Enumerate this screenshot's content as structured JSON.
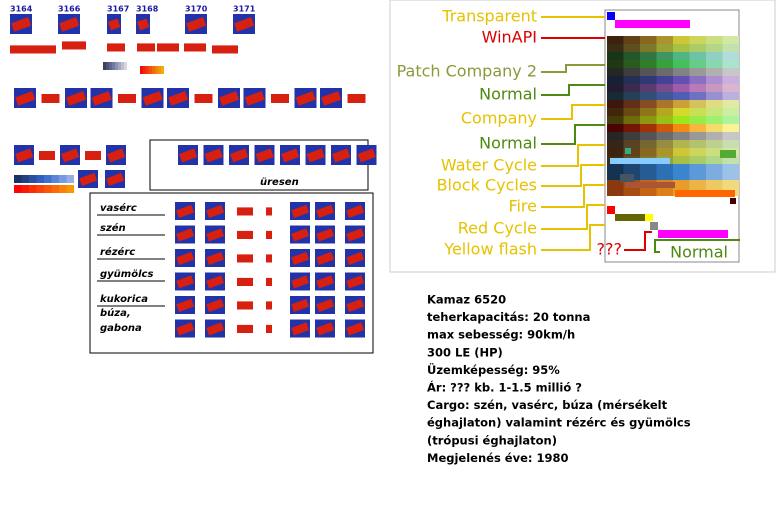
{
  "sprite_ids": [
    "3164",
    "3166",
    "3167",
    "3168",
    "3170",
    "3171"
  ],
  "empty_label": "üresen",
  "cargo_labels": [
    "vasérc",
    "szén",
    "rézérc",
    "gyümölcs",
    "kukorica",
    "búza,",
    "gabona"
  ],
  "palette_labels": [
    "Transparent",
    "WinAPI",
    "Patch Company 2",
    "Normal",
    "Company",
    "Normal",
    "Water Cycle",
    "Block Cycles",
    "Fire",
    "Red Cycle",
    "Yellow flash",
    "???",
    "Normal"
  ],
  "info_lines": [
    "Kamaz 6520",
    "teherkapacitás: 20 tonna",
    "max sebesség: 90km/h",
    "300 LE (HP)",
    "Üzemképesség: 95%",
    "Ár: ??? kb. 1-1.5 millió ?",
    "Cargo: szén, vasérc, búza (mérsékelt",
    "éghajlaton) valamint rézérc és gyümölcs",
    "(trópusi éghajlaton)",
    "Megjelenés éve: 1980"
  ]
}
